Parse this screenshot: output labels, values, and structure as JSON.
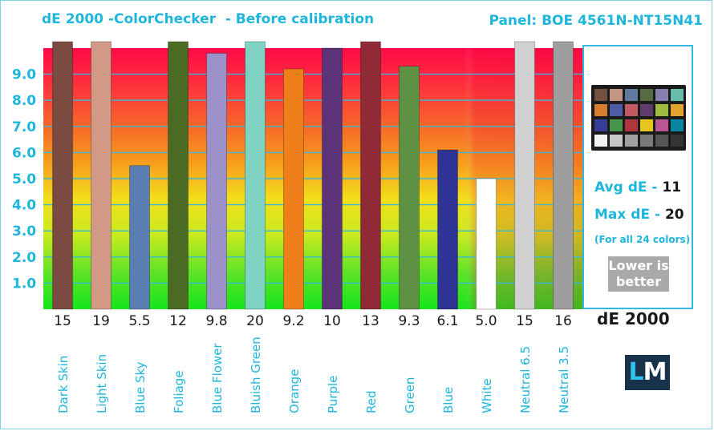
{
  "header": {
    "title": "dE 2000 -ColorChecker  - Before calibration",
    "panel": "Panel: BOE 4561N-NT15N41"
  },
  "colors": {
    "accent": "#1fb6dd",
    "bar_colors": [
      "#7b4b42",
      "#d29a86",
      "#5a7eb2",
      "#4b6a23",
      "#9b91c8",
      "#7ed3c2",
      "#ef7f1a",
      "#5c3378",
      "#8f2b36",
      "#5f9145",
      "#2f3394",
      "#ffffff",
      "#d0d0d0",
      "#9e9e9e"
    ],
    "checker_colors": [
      "#735244",
      "#c29682",
      "#627a9d",
      "#576c43",
      "#8580b1",
      "#67bdaa",
      "#d67e2c",
      "#505ba6",
      "#c15a63",
      "#5e3c6c",
      "#9dbc40",
      "#e0a32e",
      "#383d96",
      "#469449",
      "#af363c",
      "#e7c71f",
      "#bb5695",
      "#0885a1",
      "#f3f3f2",
      "#c8c8c8",
      "#a0a0a0",
      "#7a7a79",
      "#555555",
      "#343434"
    ]
  },
  "stats": {
    "avg_label": "Avg dE - ",
    "avg_value": "11",
    "max_label": "Max dE - ",
    "max_value": "20",
    "note": "(For all 24 colors)",
    "lower_line1": "Lower is",
    "lower_line2": "better",
    "metric": "dE 2000"
  },
  "logo": {
    "l": "L",
    "m": "M",
    "icon": "laptopmedia-logo"
  },
  "chart_data": {
    "type": "bar",
    "title": "dE 2000 -ColorChecker  - Before calibration",
    "categories": [
      "Dark Skin",
      "Light Skin",
      "Blue Sky",
      "Foliage",
      "Blue Flower",
      "Bluish Green",
      "Orange",
      "Purple",
      "Red",
      "Green",
      "Blue",
      "White",
      "Neutral 6.5",
      "Neutral 3.5"
    ],
    "values": [
      15,
      19,
      5.5,
      12,
      9.8,
      20,
      9.2,
      10,
      13,
      9.3,
      6.1,
      5.0,
      15,
      16
    ],
    "value_labels": [
      "15",
      "19",
      "5.5",
      "12",
      "9.8",
      "20",
      "9.2",
      "10",
      "13",
      "9.3",
      "6.1",
      "5.0",
      "15",
      "16"
    ],
    "y_ticks": [
      "1.0",
      "2.0",
      "3.0",
      "4.0",
      "5.0",
      "6.0",
      "7.0",
      "8.0",
      "9.0"
    ],
    "ylim": [
      0,
      10
    ],
    "grid": true,
    "legend": "none"
  }
}
